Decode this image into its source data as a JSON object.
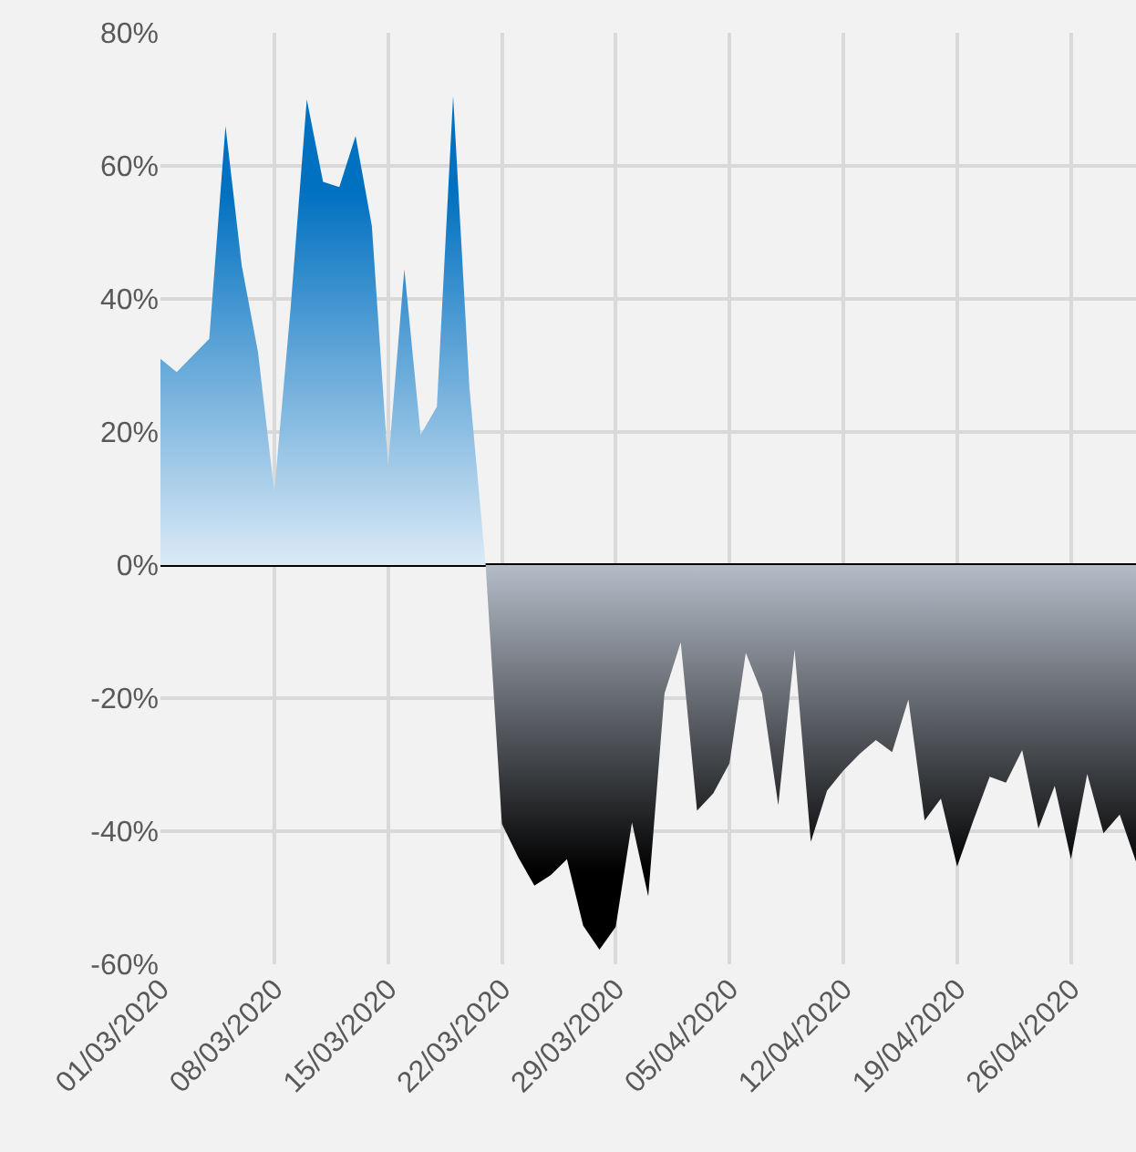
{
  "chart_data": {
    "type": "area",
    "x": [
      "2020-03-01",
      "2020-03-02",
      "2020-03-03",
      "2020-03-04",
      "2020-03-05",
      "2020-03-06",
      "2020-03-07",
      "2020-03-08",
      "2020-03-09",
      "2020-03-10",
      "2020-03-11",
      "2020-03-12",
      "2020-03-13",
      "2020-03-14",
      "2020-03-15",
      "2020-03-16",
      "2020-03-17",
      "2020-03-18",
      "2020-03-19",
      "2020-03-20",
      "2020-03-21",
      "2020-03-22",
      "2020-03-23",
      "2020-03-24",
      "2020-03-25",
      "2020-03-26",
      "2020-03-27",
      "2020-03-28",
      "2020-03-29",
      "2020-03-30",
      "2020-03-31",
      "2020-04-01",
      "2020-04-02",
      "2020-04-03",
      "2020-04-04",
      "2020-04-05",
      "2020-04-06",
      "2020-04-07",
      "2020-04-08",
      "2020-04-09",
      "2020-04-10",
      "2020-04-11",
      "2020-04-12",
      "2020-04-13",
      "2020-04-14",
      "2020-04-15",
      "2020-04-16",
      "2020-04-17",
      "2020-04-18",
      "2020-04-19",
      "2020-04-20",
      "2020-04-21",
      "2020-04-22",
      "2020-04-23",
      "2020-04-24",
      "2020-04-25",
      "2020-04-26",
      "2020-04-27",
      "2020-04-28",
      "2020-04-29",
      "2020-04-30"
    ],
    "series": [
      {
        "color": "#0070c0",
        "values": [
          31,
          29,
          31.5,
          34,
          66,
          45,
          32,
          11,
          38.5,
          70,
          57.6,
          56.8,
          64.5,
          51,
          15,
          44.5,
          19.6,
          23.8,
          70.5,
          26.7,
          0,
          null,
          null,
          null,
          null,
          null,
          null,
          null,
          null,
          null,
          null,
          null,
          null,
          null,
          null,
          null,
          null,
          null,
          null,
          null,
          null,
          null,
          null,
          null,
          null,
          null,
          null,
          null,
          null,
          null,
          null,
          null,
          null,
          null,
          null,
          null,
          null,
          null,
          null,
          null,
          null
        ]
      },
      {
        "color": "#000000",
        "values": [
          null,
          null,
          null,
          null,
          null,
          null,
          null,
          null,
          null,
          null,
          null,
          null,
          null,
          null,
          null,
          null,
          null,
          null,
          null,
          null,
          0,
          -38.9,
          -43.9,
          -48.2,
          -46.6,
          -44.2,
          -54.2,
          -57.8,
          -54.4,
          -38.7,
          -49.8,
          -19.3,
          -11.6,
          -36.9,
          -34.3,
          -29.8,
          -13.2,
          -19.3,
          -36.1,
          -12.7,
          -41.6,
          -33.9,
          -30.9,
          -28.4,
          -26.3,
          -28.1,
          -20.2,
          -38.4,
          -35.1,
          -45.3,
          -38.4,
          -31.8,
          -32.7,
          -27.8,
          -39.6,
          -33.2,
          -44.2,
          -31.4,
          -40.3,
          -37.5,
          -44.6
        ]
      }
    ],
    "xlim": [
      "2020-03-01",
      "2020-04-30"
    ],
    "xticks": [
      {
        "value": "2020-03-01",
        "label": "01/03/2020"
      },
      {
        "value": "2020-03-08",
        "label": "08/03/2020"
      },
      {
        "value": "2020-03-15",
        "label": "15/03/2020"
      },
      {
        "value": "2020-03-22",
        "label": "22/03/2020"
      },
      {
        "value": "2020-03-29",
        "label": "29/03/2020"
      },
      {
        "value": "2020-04-05",
        "label": "05/04/2020"
      },
      {
        "value": "2020-04-12",
        "label": "12/04/2020"
      },
      {
        "value": "2020-04-19",
        "label": "19/04/2020"
      },
      {
        "value": "2020-04-26",
        "label": "26/04/2020"
      }
    ],
    "ylim": [
      -60,
      80
    ],
    "yticks": [
      {
        "value": -60,
        "label": "-60%"
      },
      {
        "value": -40,
        "label": "-40%"
      },
      {
        "value": -20,
        "label": "-20%"
      },
      {
        "value": 0,
        "label": "0%"
      },
      {
        "value": 20,
        "label": "20%"
      },
      {
        "value": 40,
        "label": "40%"
      },
      {
        "value": 60,
        "label": "60%"
      },
      {
        "value": 80,
        "label": "80%"
      }
    ],
    "grid": true
  }
}
